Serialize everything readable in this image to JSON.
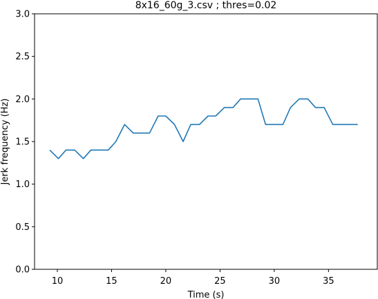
{
  "chart_data": {
    "type": "line",
    "title": "8x16_60g_3.csv ; thres=0.02",
    "xlabel": "Time (s)",
    "ylabel": "Jerk frequency (Hz)",
    "xlim": [
      7.9,
      39.5
    ],
    "ylim": [
      0.0,
      3.0
    ],
    "xticks": [
      10,
      15,
      20,
      25,
      30,
      35
    ],
    "yticks": [
      0.0,
      0.5,
      1.0,
      1.5,
      2.0,
      2.5,
      3.0
    ],
    "xtick_labels": [
      "10",
      "15",
      "20",
      "25",
      "30",
      "35"
    ],
    "ytick_labels": [
      "0.0",
      "0.5",
      "1.0",
      "1.5",
      "2.0",
      "2.5",
      "3.0"
    ],
    "grid": false,
    "line_color": "#1f77b4",
    "series": [
      {
        "x": [
          9.3,
          10.1,
          10.8,
          11.6,
          12.4,
          13.1,
          13.9,
          14.7,
          15.4,
          16.2,
          17.0,
          17.7,
          18.5,
          19.3,
          20.0,
          20.8,
          21.6,
          22.3,
          23.1,
          23.9,
          24.6,
          25.4,
          26.2,
          26.9,
          27.7,
          28.5,
          29.2,
          30.0,
          30.8,
          31.5,
          32.3,
          33.1,
          33.8,
          34.6,
          35.4,
          36.1,
          36.9,
          37.7
        ],
        "y": [
          1.4,
          1.3,
          1.4,
          1.4,
          1.3,
          1.4,
          1.4,
          1.4,
          1.5,
          1.7,
          1.6,
          1.6,
          1.6,
          1.8,
          1.8,
          1.7,
          1.5,
          1.7,
          1.7,
          1.8,
          1.8,
          1.9,
          1.9,
          2.0,
          2.0,
          2.0,
          1.7,
          1.7,
          1.7,
          1.9,
          2.0,
          2.0,
          1.9,
          1.9,
          1.7,
          1.7,
          1.7,
          1.7
        ]
      }
    ]
  }
}
